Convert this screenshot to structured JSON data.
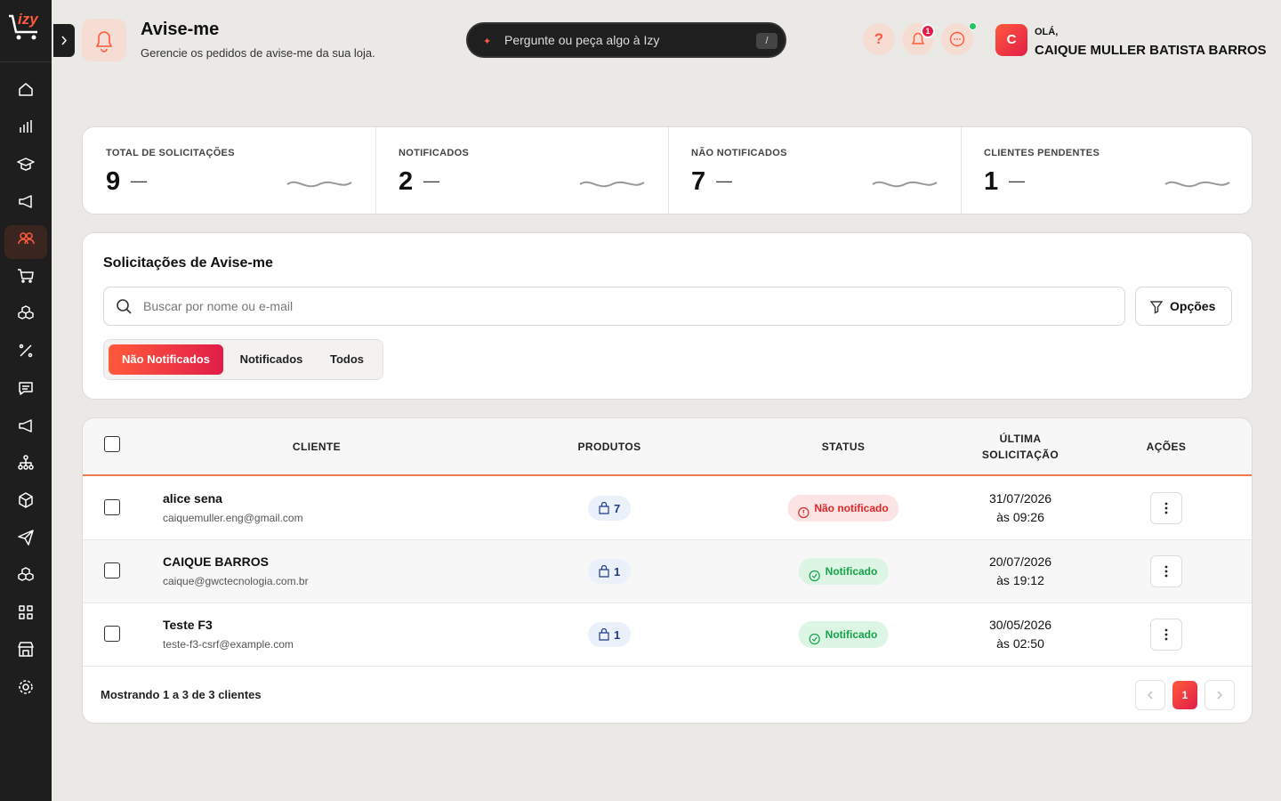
{
  "brand": "izy",
  "header": {
    "title": "Avise-me",
    "subtitle": "Gerencie os pedidos de avise-me da sua loja.",
    "ai_placeholder": "Pergunte ou peça algo à Izy",
    "ai_shortcut": "/",
    "help": "?",
    "notification_count": 1
  },
  "user": {
    "greeting": "OLÁ,",
    "avatar": "C",
    "name": "CAIQUE MULLER BATISTA BARROS"
  },
  "stats": [
    {
      "label": "TOTAL DE SOLICITAÇÕES",
      "value": 9,
      "trend": "—"
    },
    {
      "label": "NOTIFICADOS",
      "value": 2,
      "trend": "—"
    },
    {
      "label": "NÃO NOTIFICADOS",
      "value": 7,
      "trend": "—"
    },
    {
      "label": "CLIENTES PENDENTES",
      "value": 1,
      "trend": "—"
    }
  ],
  "panel": {
    "title": "Solicitações de Avise-me",
    "search_placeholder": "Buscar por nome ou e-mail",
    "options": "Opções",
    "tabs": [
      "Não Notificados",
      "Notificados",
      "Todos"
    ],
    "active_tab": 0
  },
  "table": {
    "columns": [
      "CLIENTE",
      "PRODUTOS",
      "STATUS",
      "ÚLTIMA SOLICITAÇÃO",
      "AÇÕES"
    ],
    "rows": [
      {
        "name": "alice sena",
        "email": "caiquemuller.eng@gmail.com",
        "products": 7,
        "status": "Não notificado",
        "notified": false,
        "date": "31/07/2026",
        "time": "às 09:26"
      },
      {
        "name": "CAIQUE BARROS",
        "email": "caique@gwctecnologia.com.br",
        "products": 1,
        "status": "Notificado",
        "notified": true,
        "date": "20/07/2026",
        "time": "às 19:12"
      },
      {
        "name": "Teste F3",
        "email": "teste-f3-csrf@example.com",
        "products": 1,
        "status": "Notificado",
        "notified": true,
        "date": "30/05/2026",
        "time": "às 02:50"
      }
    ]
  },
  "footer": {
    "summary": "Mostrando 1 a 3 de 3 clientes",
    "page": 1
  }
}
